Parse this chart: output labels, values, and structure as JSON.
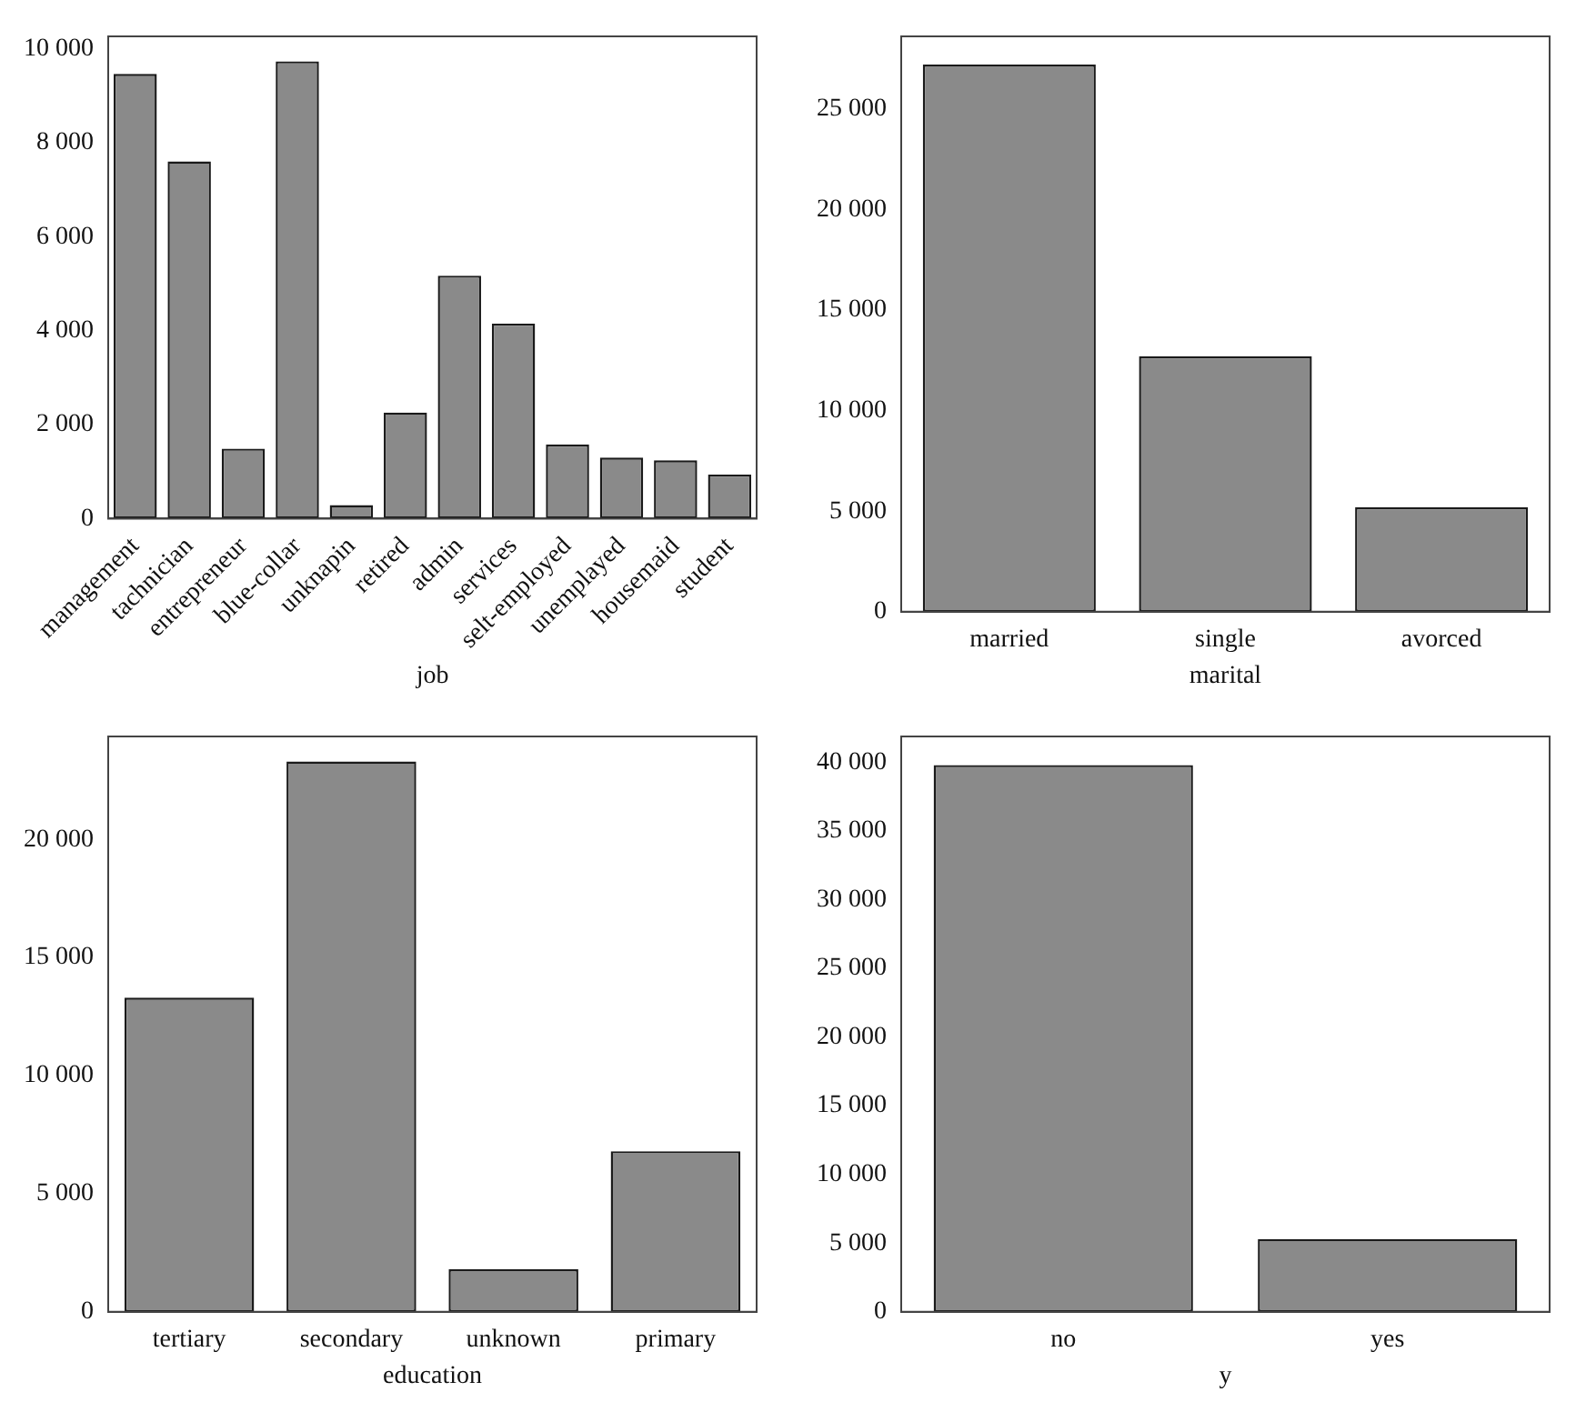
{
  "chart_data": [
    {
      "type": "bar",
      "xlabel": "job",
      "categories": [
        "management",
        "tachnician",
        "entrepreneur",
        "blue-collar",
        "unknapin",
        "retired",
        "admin",
        "services",
        "selt-employed",
        "unemplayed",
        "housemaid",
        "student"
      ],
      "values": [
        9460,
        7600,
        1490,
        9730,
        290,
        2260,
        5170,
        4150,
        1580,
        1300,
        1240,
        940
      ],
      "color": "#8a8a8a",
      "ylim": [
        0,
        10260
      ],
      "yticks": [
        {
          "value": 0,
          "label": "0"
        },
        {
          "value": 2000,
          "label": "2 000"
        },
        {
          "value": 4000,
          "label": "4 000"
        },
        {
          "value": 6000,
          "label": "6 000"
        },
        {
          "value": 8000,
          "label": "8 000"
        },
        {
          "value": 10000,
          "label": "10 000"
        }
      ]
    },
    {
      "type": "bar",
      "xlabel": "marital",
      "categories": [
        "married",
        "single",
        "avorced"
      ],
      "values": [
        27200,
        12700,
        5200
      ],
      "color": "#8a8a8a",
      "ylim": [
        0,
        28600
      ],
      "yticks": [
        {
          "value": 0,
          "label": "0"
        },
        {
          "value": 5000,
          "label": "5 000"
        },
        {
          "value": 10000,
          "label": "10 000"
        },
        {
          "value": 15000,
          "label": "15 000"
        },
        {
          "value": 20000,
          "label": "20 000"
        },
        {
          "value": 25000,
          "label": "25 000"
        }
      ]
    },
    {
      "type": "bar",
      "xlabel": "education",
      "categories": [
        "tertiary",
        "secondary",
        "unknown",
        "primary"
      ],
      "values": [
        13300,
        23300,
        1800,
        6800
      ],
      "color": "#8a8a8a",
      "ylim": [
        0,
        24360
      ],
      "yticks": [
        {
          "value": 0,
          "label": "0"
        },
        {
          "value": 5000,
          "label": "5 000"
        },
        {
          "value": 10000,
          "label": "10 000"
        },
        {
          "value": 15000,
          "label": "15 000"
        },
        {
          "value": 20000,
          "label": "20 000"
        }
      ]
    },
    {
      "type": "bar",
      "xlabel": "y",
      "categories": [
        "no",
        "yes"
      ],
      "values": [
        39800,
        5300
      ],
      "color": "#8a8a8a",
      "ylim": [
        0,
        41880
      ],
      "yticks": [
        {
          "value": 0,
          "label": "0"
        },
        {
          "value": 5000,
          "label": "5 000"
        },
        {
          "value": 10000,
          "label": "10 000"
        },
        {
          "value": 15000,
          "label": "15 000"
        },
        {
          "value": 20000,
          "label": "20 000"
        },
        {
          "value": 25000,
          "label": "25 000"
        },
        {
          "value": 30000,
          "label": "30 000"
        },
        {
          "value": 35000,
          "label": "35 000"
        },
        {
          "value": 40000,
          "label": "40 000"
        }
      ]
    }
  ]
}
